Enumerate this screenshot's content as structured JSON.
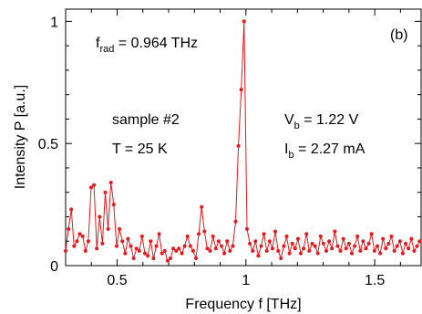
{
  "chart_data": {
    "type": "line",
    "panel_label": "(b)",
    "xlabel": "Frequency f [THz]",
    "ylabel": "Intensity P [a.u.]",
    "xlim": [
      0.3,
      1.68
    ],
    "ylim": [
      0,
      1.05
    ],
    "xticks": [
      0.5,
      1,
      1.5
    ],
    "xtick_labels": [
      "0.5",
      "1",
      "1.5"
    ],
    "yticks": [
      0,
      0.5,
      1
    ],
    "ytick_labels": [
      "0",
      "0.5",
      "1"
    ],
    "grid": false,
    "legend": "none",
    "series_color": "#e8191c",
    "annotations": {
      "frad": {
        "sym": "f",
        "sub": "rad",
        "rest": " = 0.964 THz"
      },
      "sample": "sample #2",
      "temp": "T = 25 K",
      "vb": {
        "sym": "V",
        "sub": "b",
        "rest": " = 1.22 V"
      },
      "ib": {
        "sym": "I",
        "sub": "b",
        "rest": " = 2.27 mA"
      }
    },
    "series": [
      {
        "x": [
          0.3,
          0.311,
          0.322,
          0.333,
          0.344,
          0.355,
          0.366,
          0.377,
          0.388,
          0.399,
          0.41,
          0.421,
          0.432,
          0.443,
          0.454,
          0.465,
          0.476,
          0.487,
          0.498,
          0.509,
          0.52,
          0.531,
          0.542,
          0.553,
          0.564,
          0.575,
          0.586,
          0.597,
          0.608,
          0.619,
          0.63,
          0.641,
          0.652,
          0.663,
          0.674,
          0.685,
          0.696,
          0.707,
          0.718,
          0.729,
          0.74,
          0.751,
          0.762,
          0.773,
          0.784,
          0.795,
          0.806,
          0.817,
          0.828,
          0.839,
          0.85,
          0.861,
          0.872,
          0.883,
          0.894,
          0.905,
          0.916,
          0.927,
          0.938,
          0.949,
          0.96,
          0.971,
          0.982,
          0.993,
          1.004,
          1.015,
          1.026,
          1.037,
          1.048,
          1.059,
          1.07,
          1.081,
          1.092,
          1.103,
          1.114,
          1.125,
          1.136,
          1.147,
          1.158,
          1.169,
          1.18,
          1.191,
          1.202,
          1.213,
          1.224,
          1.235,
          1.246,
          1.257,
          1.268,
          1.279,
          1.29,
          1.301,
          1.312,
          1.323,
          1.334,
          1.345,
          1.356,
          1.367,
          1.378,
          1.389,
          1.4,
          1.411,
          1.422,
          1.433,
          1.444,
          1.455,
          1.466,
          1.477,
          1.488,
          1.499,
          1.51,
          1.521,
          1.532,
          1.543,
          1.554,
          1.565,
          1.576,
          1.587,
          1.598,
          1.609,
          1.62,
          1.631,
          1.642,
          1.653,
          1.664,
          1.675
        ],
        "y": [
          0.06,
          0.15,
          0.23,
          0.08,
          0.1,
          0.13,
          0.12,
          0.06,
          0.1,
          0.32,
          0.33,
          0.07,
          0.2,
          0.09,
          0.3,
          0.15,
          0.34,
          0.25,
          0.08,
          0.15,
          0.1,
          0.05,
          0.11,
          0.08,
          0.03,
          0.07,
          0.06,
          0.12,
          0.05,
          0.04,
          0.1,
          0.03,
          0.08,
          0.13,
          0.05,
          0.06,
          0.02,
          0.03,
          0.07,
          0.06,
          0.07,
          0.05,
          0.08,
          0.12,
          0.08,
          0.06,
          0.03,
          0.13,
          0.24,
          0.14,
          0.07,
          0.06,
          0.12,
          0.07,
          0.1,
          0.08,
          0.05,
          0.1,
          0.06,
          0.08,
          0.18,
          0.49,
          0.72,
          1.0,
          0.15,
          0.09,
          0.06,
          0.1,
          0.04,
          0.08,
          0.13,
          0.06,
          0.1,
          0.07,
          0.14,
          0.06,
          0.03,
          0.08,
          0.12,
          0.05,
          0.09,
          0.07,
          0.11,
          0.05,
          0.07,
          0.13,
          0.06,
          0.09,
          0.08,
          0.05,
          0.12,
          0.09,
          0.06,
          0.1,
          0.07,
          0.14,
          0.08,
          0.06,
          0.11,
          0.07,
          0.09,
          0.05,
          0.08,
          0.12,
          0.06,
          0.1,
          0.07,
          0.09,
          0.13,
          0.06,
          0.08,
          0.05,
          0.11,
          0.07,
          0.09,
          0.12,
          0.06,
          0.08,
          0.1,
          0.05,
          0.09,
          0.07,
          0.11,
          0.06,
          0.08,
          0.1
        ]
      }
    ]
  }
}
